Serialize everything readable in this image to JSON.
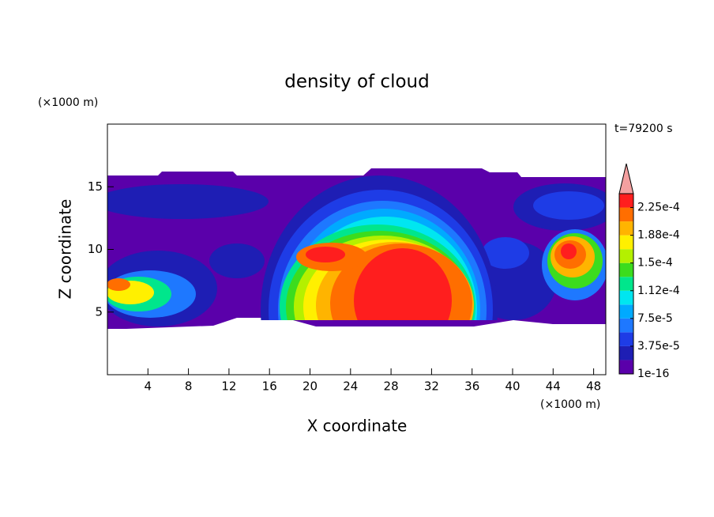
{
  "chart_data": {
    "type": "contour",
    "title": "density of cloud",
    "x_label": "X coordinate",
    "y_label": "Z coordinate",
    "x_unit": "(×1000 m)",
    "y_unit": "(×1000 m)",
    "annotation": "t=79200 s",
    "xlim": [
      0,
      49.2
    ],
    "ylim": [
      0,
      20
    ],
    "xticks": [
      4,
      8,
      12,
      16,
      20,
      24,
      28,
      32,
      36,
      40,
      44,
      48
    ],
    "yticks": [
      5,
      10,
      15
    ],
    "colorbar": {
      "levels": [
        {
          "value": 1e-16,
          "label": "1e-16"
        },
        {
          "value": 3.75e-05,
          "label": "3.75e-5"
        },
        {
          "value": 7.5e-05,
          "label": "7.5e-5"
        },
        {
          "value": 0.000112,
          "label": "1.12e-4"
        },
        {
          "value": 0.00015,
          "label": "1.5e-4"
        },
        {
          "value": 0.000188,
          "label": "1.88e-4"
        },
        {
          "value": 0.000225,
          "label": "2.25e-4"
        }
      ],
      "colors": [
        "#5a00aa",
        "#1e1eb4",
        "#1e3ce6",
        "#1e78ff",
        "#00aaff",
        "#00e6f0",
        "#00e68c",
        "#3cdc1e",
        "#b4f000",
        "#fff000",
        "#ffb400",
        "#ff6e00",
        "#ff1e1e"
      ],
      "extend_color": "#f4a0a0"
    }
  }
}
